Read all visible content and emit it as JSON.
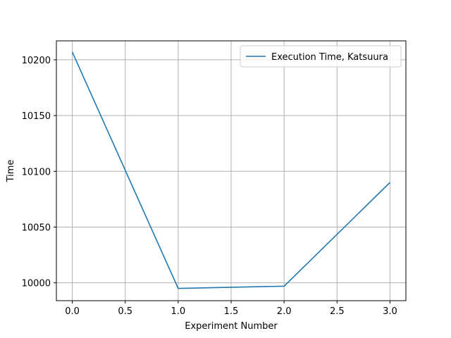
{
  "chart_data": {
    "type": "line",
    "title": "",
    "xlabel": "Experiment Number",
    "ylabel": "Time",
    "xlim": [
      -0.15,
      3.15
    ],
    "ylim": [
      9984,
      10217
    ],
    "x_ticks": [
      0.0,
      0.5,
      1.0,
      1.5,
      2.0,
      2.5,
      3.0
    ],
    "x_tick_labels": [
      "0.0",
      "0.5",
      "1.0",
      "1.5",
      "2.0",
      "2.5",
      "3.0"
    ],
    "y_ticks": [
      10000,
      10050,
      10100,
      10150,
      10200
    ],
    "y_tick_labels": [
      "10000",
      "10050",
      "10100",
      "10150",
      "10200"
    ],
    "grid": true,
    "legend_position": "top-right",
    "series": [
      {
        "name": "Execution Time, Katsuura",
        "color": "#1f77b4",
        "x": [
          0,
          1,
          2,
          3
        ],
        "y": [
          10207,
          9995,
          9997,
          10090
        ]
      }
    ]
  }
}
